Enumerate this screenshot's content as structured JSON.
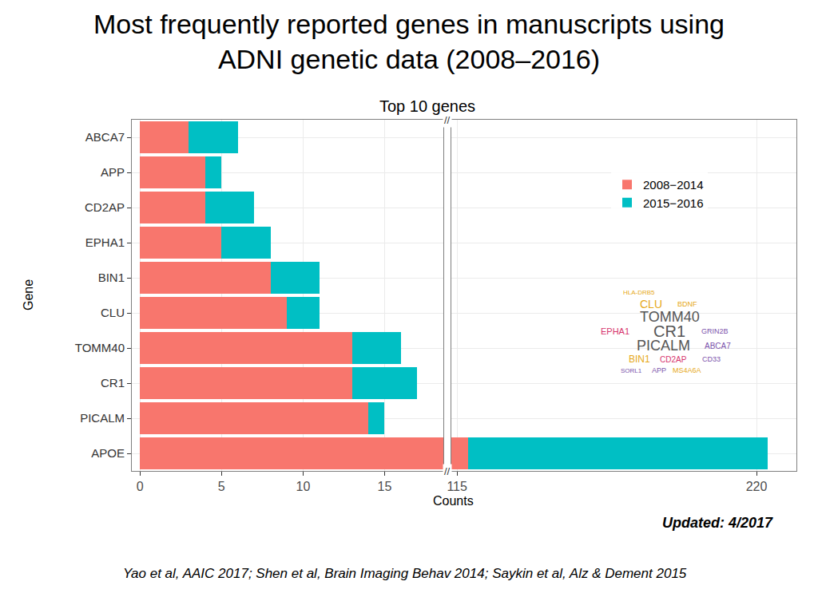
{
  "chart_data": {
    "type": "bar",
    "orientation": "horizontal",
    "stacked": true,
    "title": "Most frequently reported genes in manuscripts using\nADNI genetic data (2008–2016)",
    "subtitle": "Top 10 genes",
    "x_label": "Counts",
    "y_label": "Gene",
    "categories": [
      "APOE",
      "PICALM",
      "CR1",
      "TOMM40",
      "CLU",
      "BIN1",
      "EPHA1",
      "CD2AP",
      "APP",
      "ABCA7"
    ],
    "series": [
      {
        "name": "2008−2014",
        "color": "#F8766D",
        "values": [
          119,
          14,
          13,
          13,
          9,
          8,
          5,
          4,
          4,
          3
        ]
      },
      {
        "name": "2015−2016",
        "color": "#00BFC4",
        "values": [
          105,
          1,
          4,
          3,
          2,
          3,
          3,
          3,
          1,
          3
        ]
      }
    ],
    "xlim": [
      [
        -0.5,
        18.6
      ],
      [
        113,
        234
      ]
    ],
    "xticks": [
      [
        0,
        5,
        10,
        15
      ],
      [
        115,
        220
      ]
    ],
    "axis_break": "//",
    "grid": true,
    "legend": "upper right",
    "annotations": [
      "Updated: 4/2017",
      "Yao et al, AAIC 2017; Shen et al, Brain Imaging Behav 2014; Saykin et al, Alz & Dement 2015"
    ],
    "word_cloud": {
      "words": [
        "TOMM40",
        "CR1",
        "PICALM",
        "CLU",
        "BIN1",
        "EPHA1",
        "ABCA7",
        "CD2AP",
        "APP",
        "GRIN2B",
        "CD33",
        "BDNF",
        "MS4A6A",
        "SORL1",
        "HLA-DRB5"
      ],
      "colors": [
        "#555555",
        "#555555",
        "#555555",
        "#E6A817",
        "#E6A817",
        "#D6336C",
        "#7B52AB",
        "#D6336C",
        "#7B52AB",
        "#7B52AB",
        "#7B52AB",
        "#E6A817",
        "#E6A817",
        "#7B52AB",
        "#E6A817"
      ]
    }
  }
}
